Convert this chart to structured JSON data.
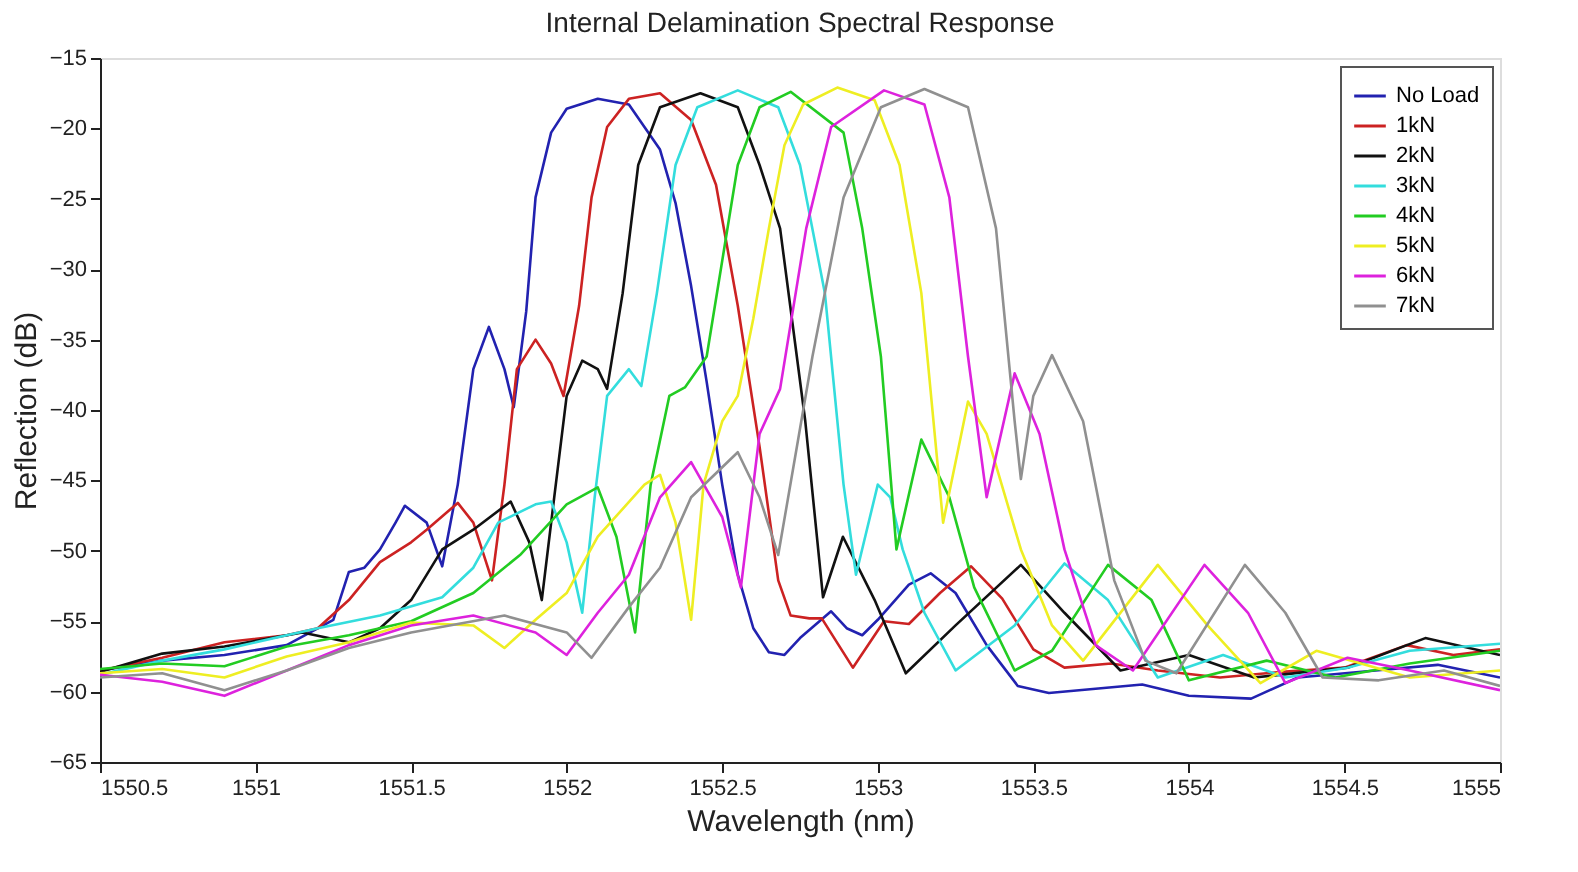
{
  "chart_data": {
    "type": "line",
    "title": "Internal Delamination Spectral Response",
    "xlabel": "Wavelength (nm)",
    "ylabel": "Reflection (dB)",
    "xlim": [
      1550.5,
      1555
    ],
    "xticks": [
      1550.5,
      1551,
      1551.5,
      1552,
      1552.5,
      1553,
      1553.5,
      1554,
      1554.5,
      1555
    ],
    "ylim": [
      -65,
      -15
    ],
    "yticks": [
      -65,
      -60,
      -55,
      -50,
      -45,
      -40,
      -35,
      -30,
      -25,
      -20,
      -15
    ],
    "grid": false,
    "legend": "top right",
    "marker": "none",
    "line_style": "solid",
    "series": [
      {
        "name": "No Load",
        "color": "#2222b0",
        "x": [
          1550.5,
          1550.7,
          1550.9,
          1551.1,
          1551.25,
          1551.3,
          1551.35,
          1551.4,
          1551.45,
          1551.48,
          1551.55,
          1551.6,
          1551.65,
          1551.7,
          1551.75,
          1551.8,
          1551.83,
          1551.87,
          1551.9,
          1551.95,
          1552.0,
          1552.1,
          1552.2,
          1552.3,
          1552.35,
          1552.4,
          1552.45,
          1552.5,
          1552.55,
          1552.6,
          1552.65,
          1552.7,
          1552.75,
          1552.85,
          1552.9,
          1552.95,
          1553.0,
          1553.1,
          1553.17,
          1553.25,
          1553.35,
          1553.45,
          1553.55,
          1553.7,
          1553.85,
          1554.0,
          1554.2,
          1554.35,
          1554.6,
          1554.8,
          1555.0
        ],
        "values": [
          -58.5,
          -57.8,
          -57.4,
          -56.7,
          -54.9,
          -51.5,
          -51.2,
          -49.9,
          -48.0,
          -46.8,
          -48.0,
          -51.1,
          -45.3,
          -37.1,
          -34.1,
          -37.1,
          -39.8,
          -33.0,
          -24.9,
          -20.3,
          -18.6,
          -17.9,
          -18.3,
          -21.5,
          -25.3,
          -31.2,
          -38.0,
          -45.3,
          -51.7,
          -55.5,
          -57.2,
          -57.4,
          -56.2,
          -54.3,
          -55.5,
          -56.0,
          -54.9,
          -52.4,
          -51.6,
          -53.0,
          -56.7,
          -59.6,
          -60.1,
          -59.8,
          -59.5,
          -60.3,
          -60.5,
          -59.0,
          -58.5,
          -58.1,
          -59.0
        ]
      },
      {
        "name": "1kN",
        "color": "#cc2222",
        "x": [
          1550.5,
          1550.7,
          1550.9,
          1551.1,
          1551.2,
          1551.3,
          1551.4,
          1551.5,
          1551.55,
          1551.65,
          1551.7,
          1551.76,
          1551.8,
          1551.84,
          1551.9,
          1551.95,
          1551.99,
          1552.04,
          1552.08,
          1552.13,
          1552.2,
          1552.3,
          1552.4,
          1552.48,
          1552.55,
          1552.62,
          1552.68,
          1552.72,
          1552.78,
          1552.82,
          1552.92,
          1553.02,
          1553.1,
          1553.2,
          1553.3,
          1553.4,
          1553.5,
          1553.6,
          1553.75,
          1553.9,
          1554.1,
          1554.3,
          1554.5,
          1554.7,
          1554.85,
          1555.0
        ],
        "values": [
          -58.5,
          -57.6,
          -56.5,
          -56.0,
          -55.5,
          -53.5,
          -50.8,
          -49.4,
          -48.5,
          -46.6,
          -48.0,
          -52.1,
          -45.3,
          -37.1,
          -35.0,
          -36.7,
          -39.0,
          -32.6,
          -24.9,
          -19.9,
          -17.9,
          -17.5,
          -19.4,
          -24.0,
          -32.6,
          -42.6,
          -52.1,
          -54.6,
          -54.8,
          -54.8,
          -58.3,
          -55.0,
          -55.2,
          -53.0,
          -51.1,
          -53.4,
          -57.0,
          -58.3,
          -58.0,
          -58.5,
          -59.0,
          -58.6,
          -58.3,
          -56.7,
          -57.4,
          -57.0
        ]
      },
      {
        "name": "2kN",
        "color": "#111111",
        "x": [
          1550.5,
          1550.7,
          1550.9,
          1551.15,
          1551.3,
          1551.4,
          1551.5,
          1551.6,
          1551.7,
          1551.82,
          1551.88,
          1551.92,
          1551.96,
          1552.0,
          1552.05,
          1552.1,
          1552.13,
          1552.18,
          1552.23,
          1552.3,
          1552.43,
          1552.55,
          1552.62,
          1552.686,
          1552.767,
          1552.824,
          1552.888,
          1552.99,
          1553.09,
          1553.25,
          1553.46,
          1553.6,
          1553.78,
          1554.0,
          1554.21,
          1554.51,
          1554.76,
          1555.0
        ],
        "values": [
          -58.6,
          -57.3,
          -56.8,
          -55.8,
          -56.5,
          -55.5,
          -53.5,
          -49.9,
          -48.5,
          -46.5,
          -49.4,
          -53.5,
          -46.2,
          -39.0,
          -36.5,
          -37.1,
          -38.5,
          -31.7,
          -22.6,
          -18.5,
          -17.5,
          -18.5,
          -22.6,
          -27.1,
          -40.8,
          -53.3,
          -49.0,
          -53.5,
          -58.7,
          -55.3,
          -51.0,
          -54.4,
          -58.5,
          -57.4,
          -59.0,
          -58.3,
          -56.2,
          -57.4
        ]
      },
      {
        "name": "3kN",
        "color": "#33dddd",
        "x": [
          1550.5,
          1550.7,
          1550.9,
          1551.2,
          1551.4,
          1551.6,
          1551.7,
          1551.78,
          1551.9,
          1551.95,
          1552.0,
          1552.05,
          1552.09,
          1552.13,
          1552.2,
          1552.24,
          1552.29,
          1552.35,
          1552.42,
          1552.55,
          1552.68,
          1552.75,
          1552.83,
          1552.89,
          1552.93,
          1553.0,
          1553.04,
          1553.08,
          1553.15,
          1553.25,
          1553.44,
          1553.6,
          1553.74,
          1553.9,
          1554.11,
          1554.31,
          1554.51,
          1554.71,
          1555.0
        ],
        "values": [
          -58.8,
          -57.8,
          -57.0,
          -55.5,
          -54.6,
          -53.3,
          -51.2,
          -48.0,
          -46.7,
          -46.5,
          -49.4,
          -54.4,
          -46.2,
          -39.0,
          -37.1,
          -38.3,
          -31.7,
          -22.6,
          -18.5,
          -17.3,
          -18.5,
          -22.6,
          -31.7,
          -45.3,
          -51.7,
          -45.3,
          -46.2,
          -49.9,
          -54.4,
          -58.5,
          -55.3,
          -50.9,
          -53.5,
          -59.0,
          -57.4,
          -59.0,
          -58.3,
          -57.1,
          -56.6
        ]
      },
      {
        "name": "4kN",
        "color": "#22cc22",
        "x": [
          1550.5,
          1550.7,
          1550.9,
          1551.1,
          1551.3,
          1551.5,
          1551.7,
          1551.85,
          1552.0,
          1552.1,
          1552.16,
          1552.22,
          1552.27,
          1552.33,
          1552.38,
          1552.45,
          1552.5,
          1552.55,
          1552.62,
          1552.72,
          1552.89,
          1552.95,
          1553.01,
          1553.06,
          1553.14,
          1553.23,
          1553.31,
          1553.44,
          1553.56,
          1553.74,
          1553.88,
          1554.0,
          1554.25,
          1554.47,
          1554.71,
          1555.0
        ],
        "values": [
          -58.4,
          -58.0,
          -58.2,
          -56.8,
          -56.0,
          -55.0,
          -53.0,
          -50.3,
          -46.7,
          -45.5,
          -49.0,
          -55.8,
          -45.3,
          -39.0,
          -38.4,
          -36.2,
          -29.4,
          -22.6,
          -18.5,
          -17.4,
          -20.3,
          -27.1,
          -36.2,
          -49.9,
          -42.1,
          -46.2,
          -52.6,
          -58.5,
          -57.1,
          -51.0,
          -53.5,
          -59.2,
          -57.8,
          -59.0,
          -58.0,
          -57.1
        ]
      },
      {
        "name": "5kN",
        "color": "#eeee22",
        "x": [
          1550.5,
          1550.7,
          1550.9,
          1551.1,
          1551.3,
          1551.5,
          1551.7,
          1551.8,
          1551.9,
          1552.0,
          1552.1,
          1552.25,
          1552.3,
          1552.35,
          1552.4,
          1552.44,
          1552.5,
          1552.55,
          1552.6,
          1552.65,
          1552.7,
          1552.76,
          1552.87,
          1552.99,
          1553.07,
          1553.14,
          1553.21,
          1553.29,
          1553.35,
          1553.46,
          1553.56,
          1553.66,
          1553.9,
          1554.06,
          1554.23,
          1554.41,
          1554.71,
          1555.0
        ],
        "values": [
          -58.7,
          -58.4,
          -59.0,
          -57.5,
          -56.5,
          -55.1,
          -55.3,
          -56.9,
          -54.9,
          -53.0,
          -49.0,
          -45.3,
          -44.6,
          -48.0,
          -54.9,
          -45.3,
          -40.8,
          -39.0,
          -33.5,
          -27.1,
          -21.2,
          -18.3,
          -17.1,
          -18.0,
          -22.6,
          -31.7,
          -48.0,
          -39.4,
          -41.7,
          -49.9,
          -55.3,
          -57.8,
          -51.0,
          -55.3,
          -59.4,
          -57.1,
          -59.0,
          -58.5
        ]
      },
      {
        "name": "6kN",
        "color": "#dd22dd",
        "x": [
          1550.5,
          1550.7,
          1550.9,
          1551.1,
          1551.3,
          1551.5,
          1551.7,
          1551.9,
          1552.0,
          1552.1,
          1552.2,
          1552.3,
          1552.4,
          1552.5,
          1552.56,
          1552.62,
          1552.686,
          1552.77,
          1552.85,
          1553.02,
          1553.15,
          1553.23,
          1553.29,
          1553.35,
          1553.44,
          1553.52,
          1553.6,
          1553.7,
          1553.82,
          1554.05,
          1554.19,
          1554.31,
          1554.51,
          1554.71,
          1555.0
        ],
        "values": [
          -58.8,
          -59.3,
          -60.3,
          -58.5,
          -56.7,
          -55.3,
          -54.6,
          -55.8,
          -57.4,
          -54.4,
          -51.7,
          -46.2,
          -43.7,
          -47.6,
          -52.6,
          -41.7,
          -38.5,
          -27.1,
          -19.9,
          -17.3,
          -18.3,
          -24.9,
          -36.2,
          -46.2,
          -37.4,
          -41.7,
          -49.9,
          -56.7,
          -58.5,
          -51.0,
          -54.4,
          -59.4,
          -57.6,
          -58.5,
          -59.9
        ]
      },
      {
        "name": "7kN",
        "color": "#909090",
        "x": [
          1550.5,
          1550.7,
          1550.9,
          1551.1,
          1551.3,
          1551.5,
          1551.8,
          1552.0,
          1552.08,
          1552.2,
          1552.3,
          1552.4,
          1552.55,
          1552.62,
          1552.68,
          1552.79,
          1552.89,
          1553.01,
          1553.15,
          1553.29,
          1553.38,
          1553.44,
          1553.46,
          1553.5,
          1553.56,
          1553.66,
          1553.76,
          1553.86,
          1553.96,
          1554.18,
          1554.31,
          1554.43,
          1554.61,
          1554.82,
          1555.0
        ],
        "values": [
          -59.0,
          -58.7,
          -59.9,
          -58.5,
          -56.9,
          -55.8,
          -54.6,
          -55.8,
          -57.6,
          -54.0,
          -51.2,
          -46.2,
          -43.0,
          -46.2,
          -50.3,
          -36.2,
          -24.9,
          -18.5,
          -17.2,
          -18.5,
          -27.1,
          -40.8,
          -44.9,
          -39.0,
          -36.1,
          -40.8,
          -52.1,
          -57.8,
          -58.7,
          -51.0,
          -54.4,
          -59.0,
          -59.2,
          -58.5,
          -59.6
        ]
      }
    ]
  }
}
